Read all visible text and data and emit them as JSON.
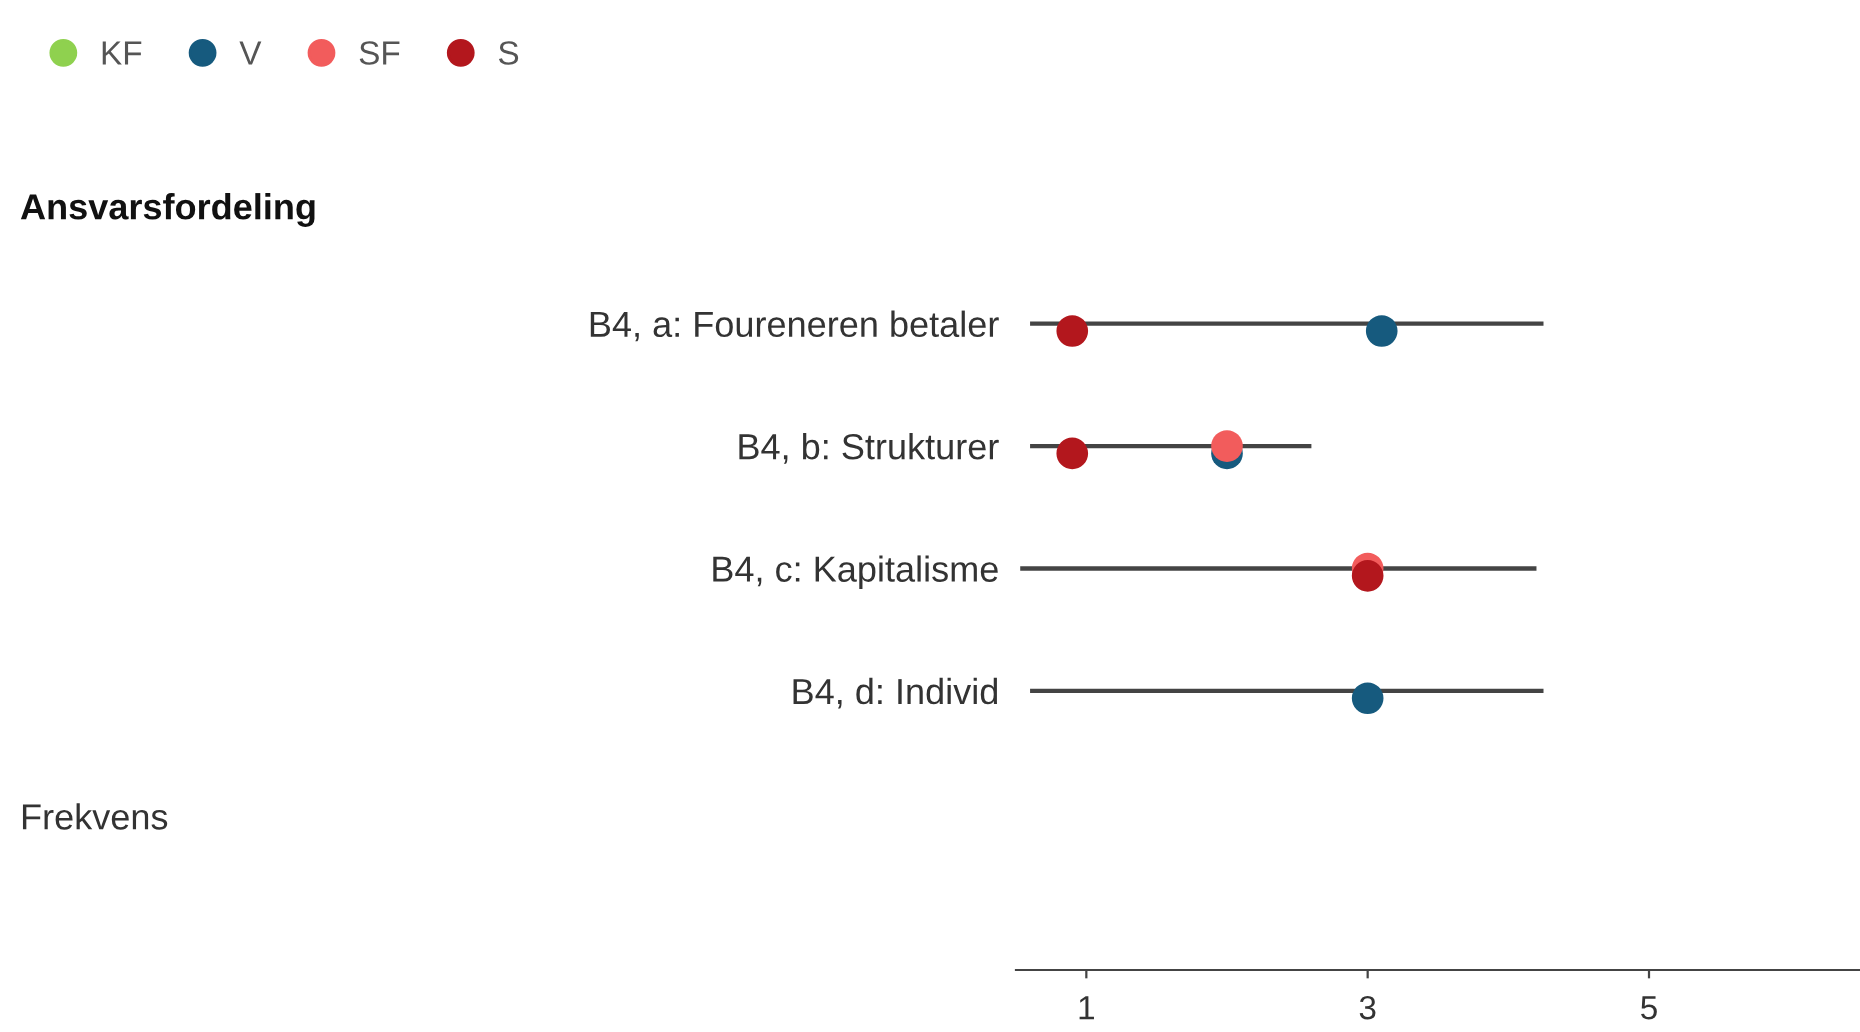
{
  "chart_data": {
    "type": "scatter",
    "title": "Ansvarsfordeling",
    "orientation": "horizontal",
    "categories": [
      "B4, a: Foureneren betaler",
      "B4, b: Strukturer",
      "B4, c: Kapitalisme",
      "B4, d: Individ"
    ],
    "series": [
      {
        "type": "bar",
        "color": "#444444",
        "base": [
          0.6,
          0.6,
          0.53,
          0.6
        ],
        "values": [
          3.65,
          2.0,
          3.67,
          3.65
        ]
      },
      {
        "name": "KF",
        "color": "#8fd14f",
        "values": [
          null,
          null,
          null,
          null
        ]
      },
      {
        "name": "V",
        "color": "#165a7e",
        "values": [
          3.1,
          2.0,
          null,
          3.0
        ]
      },
      {
        "name": "SF",
        "color": "#f25c5c",
        "values": [
          null,
          2.0,
          3.0,
          null
        ]
      },
      {
        "name": "S",
        "color": "#b3171d",
        "values": [
          0.9,
          0.9,
          3.0,
          null
        ]
      }
    ],
    "xlim": [
      0.5,
      6.5
    ],
    "xticks": [
      1,
      3,
      5
    ],
    "marker": "circle",
    "legend": "top left",
    "grid": false,
    "annotations": [
      "Frekvens"
    ]
  }
}
